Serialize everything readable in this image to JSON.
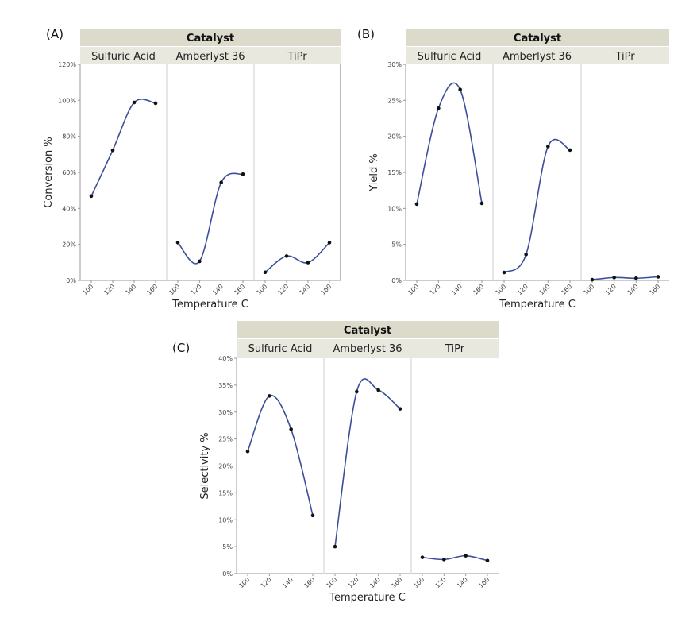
{
  "chart_data": [
    {
      "type": "line",
      "panel_label": "(A)",
      "facet_title": "Catalyst",
      "xlabel": "Temperature C",
      "ylabel": "Conversion %",
      "ylim": [
        0,
        120
      ],
      "yticks": [
        "0%",
        "20%",
        "40%",
        "60%",
        "80%",
        "100%",
        "120%"
      ],
      "x": [
        100,
        120,
        140,
        160
      ],
      "xtick_labels": [
        "100",
        "120",
        "140",
        "160"
      ],
      "series": [
        {
          "name": "Sulfuric Acid",
          "values": [
            46.8,
            72.3,
            98.8,
            98.4
          ]
        },
        {
          "name": "Amberlyst 36",
          "values": [
            21.0,
            10.6,
            54.4,
            59.0
          ]
        },
        {
          "name": "TiPr",
          "values": [
            4.5,
            13.5,
            9.9,
            21.0
          ]
        }
      ]
    },
    {
      "type": "line",
      "panel_label": "(B)",
      "facet_title": "Catalyst",
      "xlabel": "Temperature C",
      "ylabel": "Yield %",
      "ylim": [
        0,
        30
      ],
      "yticks": [
        "0%",
        "5%",
        "10%",
        "15%",
        "20%",
        "25%",
        "30%"
      ],
      "x": [
        100,
        120,
        140,
        160
      ],
      "xtick_labels": [
        "100",
        "120",
        "140",
        "160"
      ],
      "series": [
        {
          "name": "Sulfuric Acid",
          "values": [
            10.6,
            23.9,
            26.5,
            10.7
          ]
        },
        {
          "name": "Amberlyst 36",
          "values": [
            1.1,
            3.6,
            18.6,
            18.1
          ]
        },
        {
          "name": "TiPr",
          "values": [
            0.1,
            0.4,
            0.3,
            0.5
          ]
        }
      ]
    },
    {
      "type": "line",
      "panel_label": "(C)",
      "facet_title": "Catalyst",
      "xlabel": "Temperature C",
      "ylabel": "Selectivity %",
      "ylim": [
        0,
        40
      ],
      "yticks": [
        "0%",
        "5%",
        "10%",
        "15%",
        "20%",
        "25%",
        "30%",
        "35%",
        "40%"
      ],
      "x": [
        100,
        120,
        140,
        160
      ],
      "xtick_labels": [
        "100",
        "120",
        "140",
        "160"
      ],
      "series": [
        {
          "name": "Sulfuric Acid",
          "values": [
            22.7,
            33.0,
            26.8,
            10.8
          ]
        },
        {
          "name": "Amberlyst 36",
          "values": [
            5.0,
            33.8,
            34.1,
            30.6
          ]
        },
        {
          "name": "TiPr",
          "values": [
            3.0,
            2.6,
            3.3,
            2.4
          ]
        }
      ]
    }
  ],
  "colors": {
    "line": "#3b4f9a",
    "point": "#111111",
    "header": "#dcdacb",
    "facet": "#e9e8de"
  }
}
